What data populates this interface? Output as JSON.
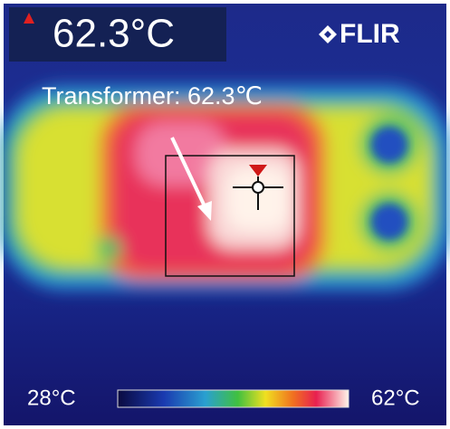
{
  "readout": {
    "temperature": "62.3°C"
  },
  "brand": "FLIR",
  "annotation": "Transformer: 62.3℃",
  "scale": {
    "min_label": "28°C",
    "max_label": "62°C"
  }
}
